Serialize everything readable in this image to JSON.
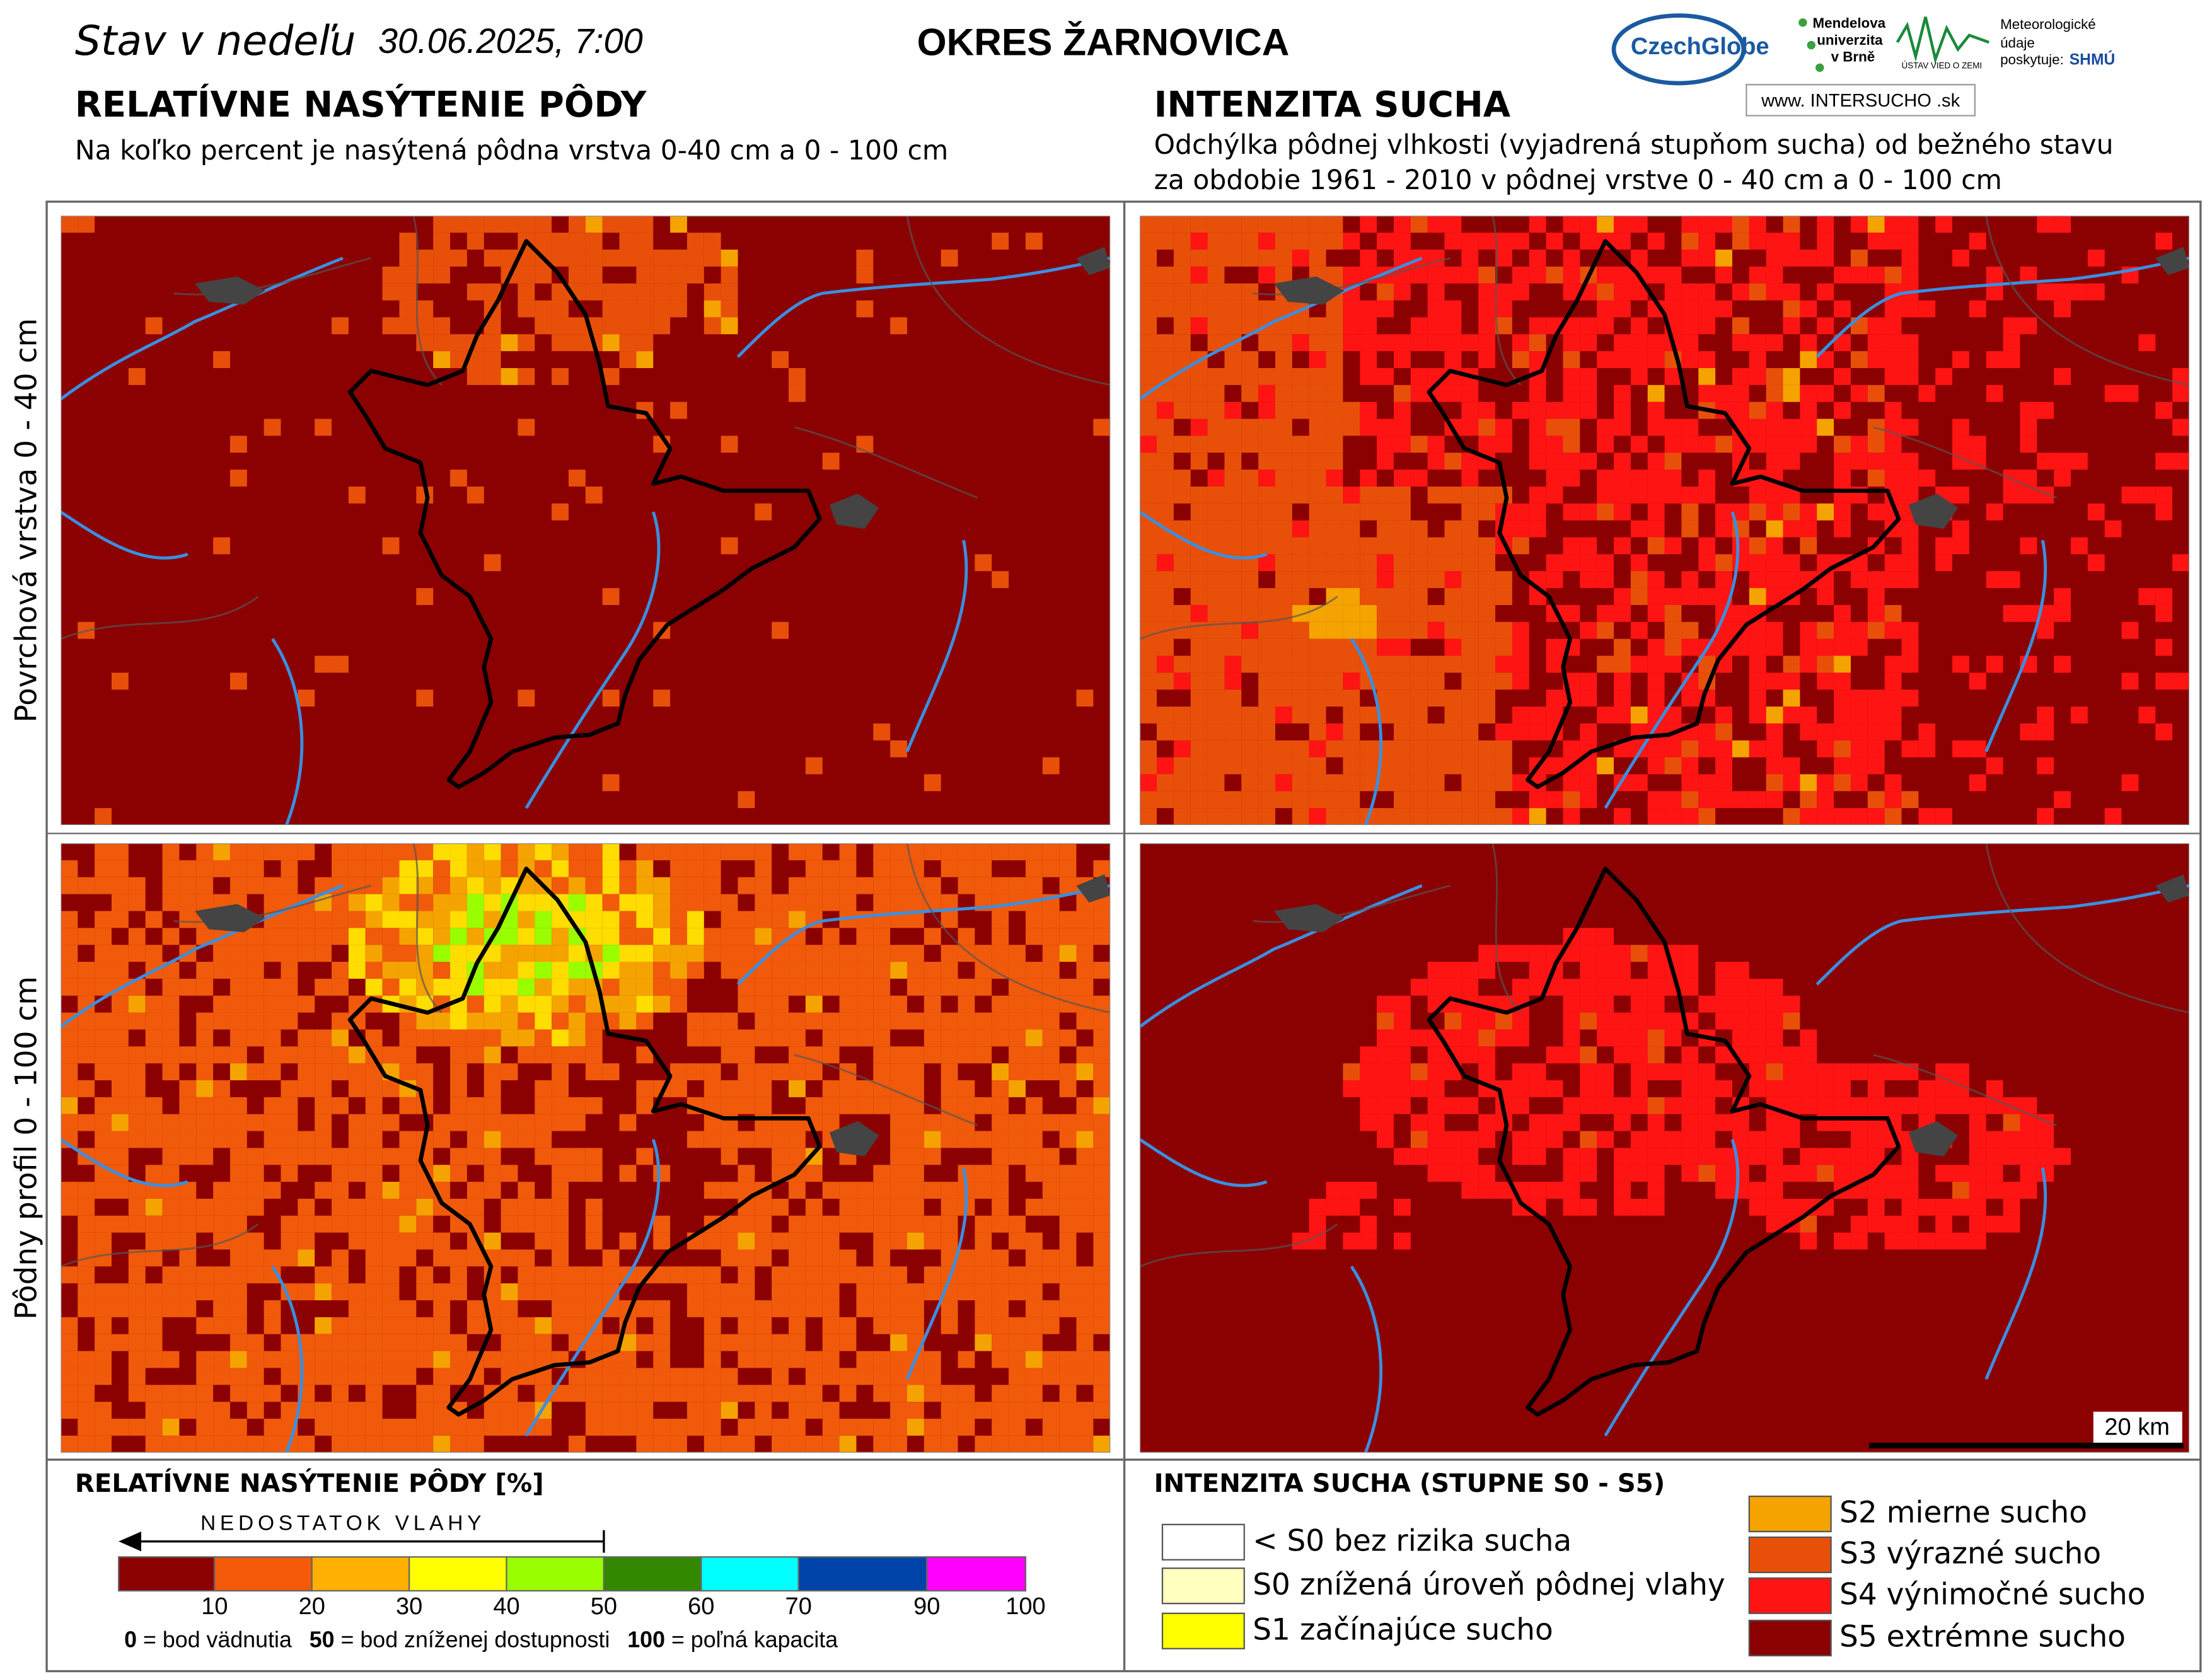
{
  "header": {
    "title_prefix": "Stav v nedeľu",
    "date": "30.06.2025, 7:00",
    "district": "OKRES  ŽARNOVICA",
    "logos": {
      "czechglobe": "CzechGlobe",
      "mendel": [
        "Mendelova",
        "univerzita",
        "v Brně"
      ],
      "uvz": "ÚSTAV VIED O ZEMI",
      "meteo": [
        "Meteorologické",
        "údaje",
        "poskytuje:"
      ],
      "shmu": "SHMÚ",
      "intersucho": "www. INTERSUCHO .sk"
    }
  },
  "left_section": {
    "title": "RELATÍVNE NASÝTENIE PÔDY",
    "subtitle": "Na koľko percent je nasýtená pôdna vrstva 0-40 cm a 0 - 100 cm"
  },
  "right_section": {
    "title": "INTENZITA SUCHA",
    "subtitle_lines": [
      "Odchýlka pôdnej vlhkosti (vyjadrená stupňom sucha) od bežného stavu",
      "za obdobie 1961 - 2010 v pôdnej vrstve 0 - 40 cm a 0 - 100 cm"
    ]
  },
  "row_labels": [
    "Povrchová vrstva 0 - 40 cm",
    "Pôdny profil 0 - 100 cm"
  ],
  "scale_bar": "20 km",
  "legend_saturation": {
    "title": "RELATÍVNE NASÝTENIE PÔDY [%]",
    "arrow_label": "NEDOSTATOK VLAHY",
    "colors": [
      "#8b0000",
      "#f55a0a",
      "#ffb000",
      "#ffff00",
      "#99ff00",
      "#338800",
      "#00ffff",
      "#0044aa",
      "#ff00ff"
    ],
    "ticks": [
      10,
      20,
      30,
      40,
      50,
      60,
      70,
      90,
      100
    ],
    "notes": [
      {
        "key": "0",
        "text": "= bod vädnutia"
      },
      {
        "key": "50",
        "text": "= bod zníženej dostupnosti"
      },
      {
        "key": "100",
        "text": "= poľná kapacita"
      }
    ]
  },
  "legend_drought": {
    "title": "INTENZITA SUCHA (STUPNE S0 - S5)",
    "items": [
      {
        "label": "< S0 bez rizika sucha",
        "color": "#ffffff"
      },
      {
        "label": "S0 znížená úroveň pôdnej vlahy",
        "color": "#ffffc0"
      },
      {
        "label": "S1 začínajúce sucho",
        "color": "#ffff00"
      },
      {
        "label": "S2 mierne sucho",
        "color": "#f5a300"
      },
      {
        "label": "S3 výrazné sucho",
        "color": "#e8500a"
      },
      {
        "label": "S4 výnimočné sucho",
        "color": "#ff1414"
      },
      {
        "label": "S5 extrémne sucho",
        "color": "#8b0000"
      }
    ]
  }
}
